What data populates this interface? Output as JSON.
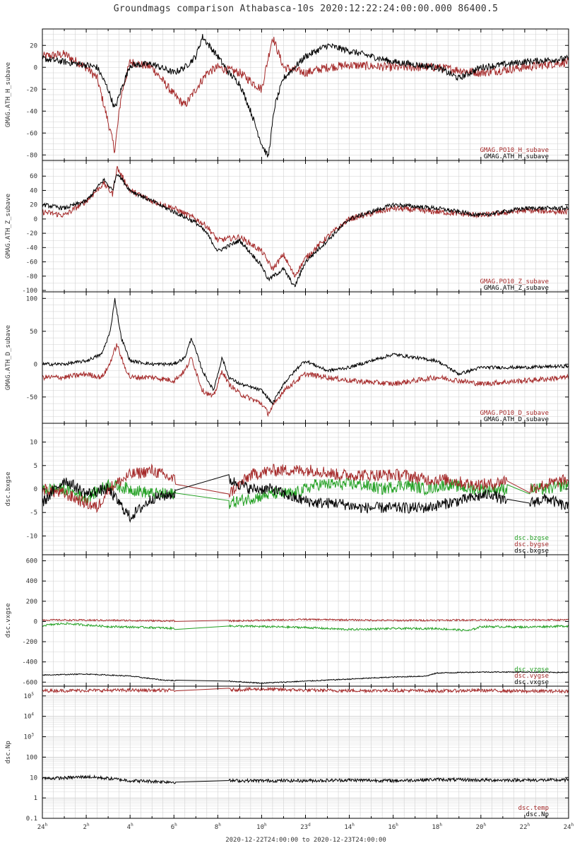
{
  "title": "Groundmags comparison Athabasca-10s 2020:12:22:24:00:00.000 86400.5",
  "xaxis_caption": "2020-12-22T24:00:00 to 2020-12-23T24:00:00",
  "x_ticks": [
    {
      "t": 0,
      "label": "24",
      "sup": "h"
    },
    {
      "t": 2,
      "label": "2",
      "sup": "h"
    },
    {
      "t": 4,
      "label": "4",
      "sup": "h"
    },
    {
      "t": 6,
      "label": "6",
      "sup": "h"
    },
    {
      "t": 8,
      "label": "8",
      "sup": "h"
    },
    {
      "t": 10,
      "label": "10",
      "sup": "h"
    },
    {
      "t": 12,
      "label": "23",
      "sup": "d"
    },
    {
      "t": 14,
      "label": "14",
      "sup": "h"
    },
    {
      "t": 16,
      "label": "16",
      "sup": "h"
    },
    {
      "t": 18,
      "label": "18",
      "sup": "h"
    },
    {
      "t": 20,
      "label": "20",
      "sup": "h"
    },
    {
      "t": 22,
      "label": "22",
      "sup": "h"
    },
    {
      "t": 24,
      "label": "24",
      "sup": "h"
    }
  ],
  "colors": {
    "black": "#000000",
    "red": "#a52a2a",
    "green": "#22a022",
    "grid": "#d0d0d0"
  },
  "chart_data": [
    {
      "type": "line",
      "ylabel": "GMAG.ATH_H_subave",
      "ylim": [
        -85,
        35
      ],
      "yticks": [
        {
          "v": 20,
          "label": "20"
        },
        {
          "v": 0,
          "label": "0"
        },
        {
          "v": -20,
          "label": "-20"
        },
        {
          "v": -40,
          "label": "-40"
        },
        {
          "v": -60,
          "label": "-60"
        },
        {
          "v": -80,
          "label": "-80"
        }
      ],
      "legend": [
        "GMAG.PO10_H_subave",
        "GMAG.ATH_H_subave"
      ],
      "series": [
        {
          "name": "GMAG.ATH_H_subave",
          "color": "black",
          "noise": 3,
          "x": [
            0,
            1,
            2,
            2.5,
            3.0,
            3.3,
            3.6,
            4.0,
            5.0,
            6.0,
            6.5,
            7.0,
            7.3,
            7.6,
            8.0,
            8.5,
            9.0,
            9.5,
            10.0,
            10.3,
            10.6,
            11.0,
            11.5,
            12.0,
            13.0,
            14.0,
            16.0,
            18.0,
            19.0,
            20.0,
            22.0,
            24.0
          ],
          "y": [
            8,
            5,
            2,
            0,
            -20,
            -38,
            -20,
            2,
            3,
            -5,
            0,
            10,
            28,
            20,
            10,
            -5,
            -15,
            -40,
            -70,
            -82,
            -35,
            -10,
            0,
            10,
            20,
            15,
            5,
            0,
            -10,
            0,
            5,
            8
          ]
        },
        {
          "name": "GMAG.PO10_H_subave",
          "color": "red",
          "noise": 4,
          "x": [
            0,
            1,
            2,
            2.5,
            3.0,
            3.3,
            3.6,
            4.0,
            5.0,
            6.0,
            6.5,
            7.0,
            7.5,
            8.0,
            9.0,
            10.0,
            10.5,
            11.0,
            12.0,
            13.0,
            14.0,
            16.0,
            18.0,
            20.0,
            22.0,
            24.0
          ],
          "y": [
            10,
            12,
            0,
            -10,
            -50,
            -76,
            -25,
            5,
            0,
            -25,
            -35,
            -20,
            -5,
            0,
            -5,
            -20,
            28,
            0,
            -5,
            0,
            2,
            0,
            0,
            -5,
            0,
            5
          ]
        }
      ]
    },
    {
      "type": "line",
      "ylabel": "GMAG.ATH_Z_subave",
      "ylim": [
        -102,
        82
      ],
      "yticks": [
        {
          "v": 60,
          "label": "60"
        },
        {
          "v": 40,
          "label": "40"
        },
        {
          "v": 20,
          "label": "20"
        },
        {
          "v": 0,
          "label": "0"
        },
        {
          "v": -20,
          "label": "-20"
        },
        {
          "v": -40,
          "label": "-40"
        },
        {
          "v": -60,
          "label": "-60"
        },
        {
          "v": -80,
          "label": "-80"
        },
        {
          "v": -100,
          "label": "-100"
        }
      ],
      "legend": [
        "GMAG.PO10_Z_subave",
        "GMAG.ATH_Z_subave"
      ],
      "series": [
        {
          "name": "GMAG.ATH_Z_subave",
          "color": "black",
          "noise": 3,
          "x": [
            0,
            1,
            2,
            2.8,
            3.2,
            3.4,
            4,
            5,
            6,
            7,
            7.5,
            8,
            9,
            10,
            10.3,
            11,
            11.5,
            12,
            13,
            14,
            16,
            18,
            20,
            22,
            24
          ],
          "y": [
            20,
            15,
            25,
            55,
            40,
            65,
            40,
            25,
            10,
            -5,
            -20,
            -45,
            -30,
            -65,
            -85,
            -70,
            -95,
            -60,
            -30,
            0,
            20,
            15,
            5,
            15,
            15
          ]
        },
        {
          "name": "GMAG.PO10_Z_subave",
          "color": "red",
          "noise": 4,
          "x": [
            0,
            1,
            2,
            2.8,
            3.2,
            3.4,
            4,
            5,
            6,
            7,
            7.5,
            8,
            9,
            10,
            10.5,
            11,
            11.5,
            12,
            13,
            14,
            16,
            18,
            20,
            22,
            24
          ],
          "y": [
            10,
            5,
            25,
            50,
            35,
            72,
            40,
            25,
            15,
            0,
            -10,
            -30,
            -25,
            -45,
            -70,
            -50,
            -80,
            -55,
            -25,
            0,
            15,
            10,
            5,
            12,
            10
          ]
        }
      ]
    },
    {
      "type": "line",
      "ylabel": "GMAG.ATH_D_subave",
      "ylim": [
        -90,
        110
      ],
      "yticks": [
        {
          "v": 100,
          "label": "100"
        },
        {
          "v": 50,
          "label": "50"
        },
        {
          "v": 0,
          "label": "0"
        },
        {
          "v": -50,
          "label": "-50"
        }
      ],
      "legend": [
        "GMAG.PO10_D_subave",
        "GMAG.ATH_D_subave"
      ],
      "series": [
        {
          "name": "GMAG.ATH_D_subave",
          "color": "black",
          "noise": 2.5,
          "x": [
            0,
            1,
            2,
            2.7,
            3.1,
            3.3,
            3.6,
            4,
            5,
            6,
            6.5,
            6.8,
            7.3,
            7.8,
            8.2,
            8.5,
            9,
            10,
            10.5,
            11,
            11.8,
            12,
            13,
            14,
            16,
            18,
            19,
            20,
            22,
            24
          ],
          "y": [
            0,
            0,
            5,
            15,
            50,
            100,
            40,
            5,
            0,
            0,
            10,
            40,
            -10,
            -40,
            10,
            -20,
            -30,
            -40,
            -60,
            -30,
            0,
            5,
            -10,
            -5,
            15,
            5,
            -15,
            -5,
            -5,
            -3
          ]
        },
        {
          "name": "GMAG.PO10_D_subave",
          "color": "red",
          "noise": 4,
          "x": [
            0,
            1,
            2,
            2.7,
            3.0,
            3.4,
            3.7,
            4,
            5,
            6,
            6.5,
            6.8,
            7.3,
            7.8,
            8.2,
            8.5,
            9,
            10,
            10.3,
            11,
            12,
            14,
            16,
            18,
            20,
            22,
            24
          ],
          "y": [
            -20,
            -20,
            -15,
            -20,
            -5,
            30,
            0,
            -20,
            -20,
            -25,
            -10,
            10,
            -40,
            -50,
            -10,
            -30,
            -45,
            -60,
            -75,
            -40,
            -15,
            -25,
            -30,
            -20,
            -30,
            -25,
            -20
          ]
        }
      ]
    },
    {
      "type": "line",
      "ylabel": "dsc.bxgse",
      "ylim": [
        -14,
        14
      ],
      "yticks": [
        {
          "v": 10,
          "label": "10"
        },
        {
          "v": 5,
          "label": "5"
        },
        {
          "v": 0,
          "label": "0"
        },
        {
          "v": -5,
          "label": "-5"
        },
        {
          "v": -10,
          "label": "-10"
        }
      ],
      "legend": [
        "dsc.bzgse",
        "dsc.bygse",
        "dsc.bxgse"
      ],
      "series": [
        {
          "name": "dsc.bxgse",
          "color": "black",
          "noise": 1.2,
          "gaps": [
            [
              6.1,
              8.5
            ],
            [
              21.2,
              22.2
            ]
          ],
          "x": [
            0,
            1,
            2,
            3,
            3.5,
            4,
            5,
            6,
            8.5,
            9.5,
            10.5,
            11.5,
            12.5,
            13.5,
            14.5,
            15.5,
            16.5,
            17.5,
            18.5,
            19.5,
            20.5,
            21.2,
            22.2,
            23,
            24
          ],
          "y": [
            -3,
            2,
            -1,
            0,
            -3,
            -6,
            -2,
            -1,
            2,
            0,
            0,
            -2,
            -3,
            -3,
            -4,
            -4,
            -4,
            -4,
            -3,
            -2,
            -1,
            -3,
            -3,
            -2,
            -4
          ]
        },
        {
          "name": "dsc.bygse",
          "color": "red",
          "noise": 1.3,
          "gaps": [
            [
              6.1,
              8.5
            ],
            [
              21.2,
              22.2
            ]
          ],
          "x": [
            0,
            1,
            2,
            2.5,
            3,
            4,
            5,
            6,
            8.5,
            9.5,
            10.5,
            11.5,
            12.5,
            13.5,
            14.5,
            15.5,
            16.5,
            17.5,
            18.5,
            19.5,
            20.5,
            21.2,
            22.2,
            23,
            24
          ],
          "y": [
            0,
            -1,
            -3,
            -4,
            0,
            3,
            4,
            2,
            -1,
            3,
            4,
            4,
            4,
            3,
            3,
            3,
            3,
            2,
            2,
            1,
            1,
            2,
            0,
            1,
            2
          ]
        },
        {
          "name": "dsc.bzgse",
          "color": "green",
          "noise": 1.3,
          "gaps": [
            [
              6.1,
              8.5
            ],
            [
              21.2,
              22.2
            ]
          ],
          "x": [
            0,
            1,
            2,
            3,
            4,
            5,
            6,
            8.5,
            9.5,
            10.5,
            11.5,
            12.5,
            13.5,
            14.5,
            15.5,
            16.5,
            17.5,
            18.5,
            19.5,
            20.5,
            21.2,
            22.2,
            23,
            24
          ],
          "y": [
            0,
            0,
            -2,
            1,
            0,
            -1,
            -1,
            -3,
            -2,
            -1,
            -1,
            1,
            1,
            1,
            0,
            1,
            0,
            1,
            0,
            0,
            0,
            0,
            0,
            1
          ]
        }
      ]
    },
    {
      "type": "line",
      "ylabel": "dsc.vxgse",
      "ylim": [
        -640,
        660
      ],
      "yticks": [
        {
          "v": 600,
          "label": "600"
        },
        {
          "v": 400,
          "label": "400"
        },
        {
          "v": 200,
          "label": "200"
        },
        {
          "v": 0,
          "label": "0"
        },
        {
          "v": -200,
          "label": "-200"
        },
        {
          "v": -400,
          "label": "-400"
        },
        {
          "v": -600,
          "label": "-600"
        }
      ],
      "legend": [
        "dsc.vzgse",
        "dsc.vygse",
        "dsc.vxgse"
      ],
      "series": [
        {
          "name": "dsc.vxgse",
          "color": "black",
          "noise": 5,
          "gaps": [
            [
              6.1,
              8.5
            ]
          ],
          "x": [
            0,
            2,
            4,
            5.5,
            6.1,
            8.5,
            10,
            12,
            14,
            16,
            17.5,
            18,
            20,
            22,
            24
          ],
          "y": [
            -530,
            -520,
            -540,
            -580,
            -585,
            -590,
            -610,
            -590,
            -570,
            -550,
            -540,
            -510,
            -500,
            -500,
            -505
          ]
        },
        {
          "name": "dsc.vygse",
          "color": "red",
          "noise": 8,
          "gaps": [
            [
              6.1,
              8.5
            ]
          ],
          "x": [
            0,
            4,
            6.1,
            8.5,
            12,
            16,
            20,
            24
          ],
          "y": [
            15,
            10,
            5,
            5,
            20,
            10,
            15,
            15
          ]
        },
        {
          "name": "dsc.vzgse",
          "color": "green",
          "noise": 10,
          "gaps": [
            [
              6.1,
              8.5
            ]
          ],
          "x": [
            0,
            1,
            3,
            5,
            6.1,
            8.5,
            10,
            12,
            14,
            16,
            18,
            19.5,
            20,
            22,
            24
          ],
          "y": [
            -40,
            -20,
            -50,
            -60,
            -70,
            -45,
            -50,
            -60,
            -80,
            -70,
            -70,
            -90,
            -50,
            -55,
            -45
          ]
        }
      ]
    },
    {
      "type": "line",
      "ylabel": "dsc.Np",
      "yscale": "log",
      "ylim": [
        0.1,
        300000
      ],
      "yticks": [
        {
          "v": 100000,
          "label": "10",
          "sup": "5"
        },
        {
          "v": 10000,
          "label": "10",
          "sup": "4"
        },
        {
          "v": 1000,
          "label": "10",
          "sup": "3"
        },
        {
          "v": 100,
          "label": "100"
        },
        {
          "v": 10,
          "label": "10"
        },
        {
          "v": 1,
          "label": "1"
        },
        {
          "v": 0.1,
          "label": "0.1"
        }
      ],
      "legend": [
        "dsc.temp",
        "dsc.Np"
      ],
      "series": [
        {
          "name": "dsc.Np",
          "color": "black",
          "noise": 0.08,
          "gaps": [
            [
              6.1,
              8.5
            ]
          ],
          "x": [
            0,
            1,
            2,
            3,
            4,
            5,
            6.1,
            8.5,
            10,
            12,
            14,
            16,
            18,
            20,
            22,
            24
          ],
          "y": [
            9,
            9.5,
            11,
            9,
            7,
            6.5,
            6,
            7,
            7,
            7,
            7.5,
            7,
            8,
            7.5,
            7.5,
            7.5
          ]
        },
        {
          "name": "dsc.temp",
          "color": "red",
          "noise": 0.08,
          "gaps": [
            [
              6.1,
              8.5
            ]
          ],
          "x": [
            0,
            2,
            4,
            6.1,
            8.5,
            10,
            12,
            14,
            16,
            18,
            20,
            22,
            24
          ],
          "y": [
            180000,
            185000,
            190000,
            185000,
            200000,
            215000,
            190000,
            180000,
            185000,
            175000,
            185000,
            170000,
            170000
          ]
        }
      ]
    }
  ]
}
